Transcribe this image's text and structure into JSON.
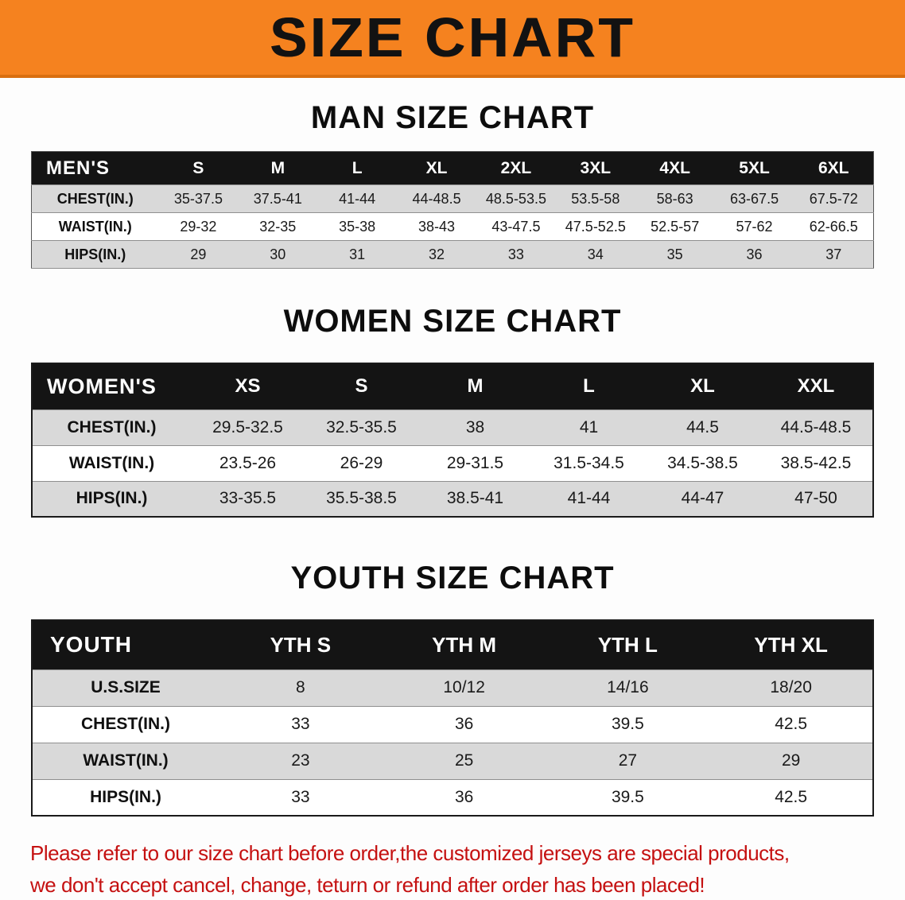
{
  "banner": {
    "title": "SIZE CHART"
  },
  "colors": {
    "banner_bg": "#f5821f",
    "header_bg": "#141414",
    "row_gray": "#d9d9d9",
    "footer_red": "#c51111"
  },
  "sections": {
    "men": {
      "heading": "MAN SIZE CHART",
      "table": {
        "header": [
          "MEN'S",
          "S",
          "M",
          "L",
          "XL",
          "2XL",
          "3XL",
          "4XL",
          "5XL",
          "6XL"
        ],
        "rows": [
          [
            "CHEST(IN.)",
            "35-37.5",
            "37.5-41",
            "41-44",
            "44-48.5",
            "48.5-53.5",
            "53.5-58",
            "58-63",
            "63-67.5",
            "67.5-72"
          ],
          [
            "WAIST(IN.)",
            "29-32",
            "32-35",
            "35-38",
            "38-43",
            "43-47.5",
            "47.5-52.5",
            "52.5-57",
            "57-62",
            "62-66.5"
          ],
          [
            "HIPS(IN.)",
            "29",
            "30",
            "31",
            "32",
            "33",
            "34",
            "35",
            "36",
            "37"
          ]
        ]
      }
    },
    "women": {
      "heading": "WOMEN SIZE CHART",
      "table": {
        "header": [
          "WOMEN'S",
          "XS",
          "S",
          "M",
          "L",
          "XL",
          "XXL"
        ],
        "rows": [
          [
            "CHEST(IN.)",
            "29.5-32.5",
            "32.5-35.5",
            "38",
            "41",
            "44.5",
            "44.5-48.5"
          ],
          [
            "WAIST(IN.)",
            "23.5-26",
            "26-29",
            "29-31.5",
            "31.5-34.5",
            "34.5-38.5",
            "38.5-42.5"
          ],
          [
            "HIPS(IN.)",
            "33-35.5",
            "35.5-38.5",
            "38.5-41",
            "41-44",
            "44-47",
            "47-50"
          ]
        ]
      }
    },
    "youth": {
      "heading": "YOUTH SIZE CHART",
      "table": {
        "header": [
          "YOUTH",
          "YTH S",
          "YTH M",
          "YTH L",
          "YTH XL"
        ],
        "rows": [
          [
            "U.S.SIZE",
            "8",
            "10/12",
            "14/16",
            "18/20"
          ],
          [
            "CHEST(IN.)",
            "33",
            "36",
            "39.5",
            "42.5"
          ],
          [
            "WAIST(IN.)",
            "23",
            "25",
            "27",
            "29"
          ],
          [
            "HIPS(IN.)",
            "33",
            "36",
            "39.5",
            "42.5"
          ]
        ]
      }
    }
  },
  "footer": {
    "line1": "Please refer to our size chart before order,the customized jerseys are special products,",
    "line2": "we don't accept cancel, change, teturn or refund after order has been placed!"
  }
}
